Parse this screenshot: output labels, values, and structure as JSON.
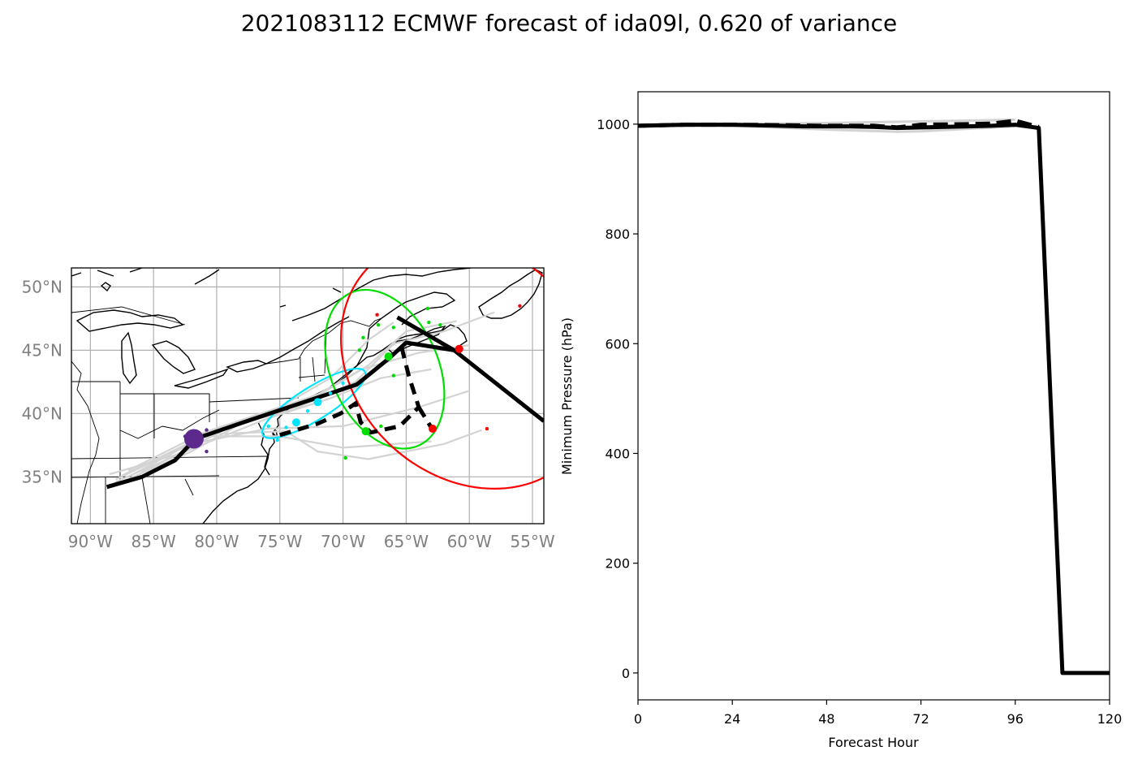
{
  "title": "2021083112 ECMWF forecast of ida09l, 0.620 of variance",
  "chart_data": [
    {
      "type": "map",
      "name": "track-map",
      "lon_range": [
        -91.5,
        -54.1
      ],
      "lat_range": [
        31.3,
        51.5
      ],
      "xticks": [
        -90,
        -85,
        -80,
        -75,
        -70,
        -65,
        -60,
        -55
      ],
      "xtick_labels": [
        "90°W",
        "85°W",
        "80°W",
        "75°W",
        "70°W",
        "65°W",
        "60°W",
        "55°W"
      ],
      "yticks": [
        35,
        40,
        45,
        50
      ],
      "ytick_labels": [
        "35°N",
        "40°N",
        "45°N",
        "50°N"
      ],
      "grid": true,
      "colors": {
        "mean_track": "#000000",
        "ensemble": "#d3d3d3",
        "grid": "#b0b0b0",
        "day1": "#5b2a8c",
        "day2": "#00e5ff",
        "day3": "#00dd00",
        "day4": "#ff0000"
      },
      "mean_track": [
        [
          -88.7,
          34.2
        ],
        [
          -85.9,
          35.0
        ],
        [
          -83.3,
          36.3
        ],
        [
          -81.7,
          38.0
        ],
        [
          -77.9,
          39.3
        ],
        [
          -73.4,
          40.8
        ],
        [
          -68.9,
          42.3
        ],
        [
          -66.3,
          44.4
        ],
        [
          -65.0,
          45.6
        ],
        [
          -61.2,
          45.0
        ],
        [
          -54.1,
          39.4
        ]
      ],
      "mean_track_branch": [
        [
          -65.7,
          47.6
        ],
        [
          -61.2,
          45.0
        ]
      ],
      "dashed_track": [
        [
          -75.0,
          38.3
        ],
        [
          -72.0,
          39.2
        ],
        [
          -70.2,
          40.0
        ],
        [
          -69.0,
          40.8
        ],
        [
          -68.6,
          39.3
        ],
        [
          -67.8,
          38.5
        ],
        [
          -65.5,
          39.0
        ],
        [
          -64.0,
          40.5
        ],
        [
          -64.8,
          43.0
        ],
        [
          -65.5,
          45.8
        ]
      ],
      "dashed_track_tail": [
        [
          -64.0,
          40.5
        ],
        [
          -62.9,
          38.7
        ]
      ],
      "ensemble_tracks": [
        [
          [
            -88.5,
            35.2
          ],
          [
            -83,
            36.8
          ],
          [
            -79,
            39.0
          ],
          [
            -74,
            40.3
          ],
          [
            -69,
            42.5
          ],
          [
            -66,
            45.5
          ],
          [
            -62,
            46.5
          ],
          [
            -58,
            48.0
          ]
        ],
        [
          [
            -88,
            34.6
          ],
          [
            -82,
            37.2
          ],
          [
            -76,
            39.6
          ],
          [
            -71,
            41.2
          ],
          [
            -67,
            42.8
          ],
          [
            -63,
            43.5
          ]
        ],
        [
          [
            -87,
            35.5
          ],
          [
            -81,
            38.5
          ],
          [
            -75,
            40.5
          ],
          [
            -71,
            42.8
          ],
          [
            -68,
            45.8
          ],
          [
            -66,
            47.2
          ]
        ],
        [
          [
            -88,
            34.8
          ],
          [
            -82,
            37.6
          ],
          [
            -76,
            38.8
          ],
          [
            -70,
            39.0
          ],
          [
            -64,
            40.5
          ],
          [
            -60,
            41.8
          ]
        ],
        [
          [
            -87,
            35.0
          ],
          [
            -81,
            38.2
          ],
          [
            -75,
            38.2
          ],
          [
            -70,
            37.3
          ],
          [
            -63,
            37.8
          ]
        ],
        [
          [
            -86,
            35.3
          ],
          [
            -80,
            38.4
          ],
          [
            -74.5,
            38.6
          ],
          [
            -72,
            37.0
          ],
          [
            -68,
            36.4
          ],
          [
            -62,
            37.6
          ],
          [
            -59,
            38.7
          ]
        ],
        [
          [
            -88,
            34.4
          ],
          [
            -82,
            37.0
          ],
          [
            -77,
            39.8
          ],
          [
            -72,
            41.5
          ],
          [
            -68,
            43.8
          ],
          [
            -65,
            46.5
          ],
          [
            -61,
            47.3
          ]
        ],
        [
          [
            -87.5,
            35.1
          ],
          [
            -81.5,
            38.0
          ],
          [
            -76,
            40.0
          ],
          [
            -71.5,
            41.7
          ],
          [
            -68.5,
            43.5
          ],
          [
            -64,
            44.8
          ],
          [
            -60,
            45.4
          ]
        ]
      ],
      "ellipses": [
        {
          "label": "day2",
          "color": "#00e5ff",
          "center": [
            -72.3,
            40.8
          ],
          "width_deg": 9.5,
          "height_deg": 2.6,
          "angle": 32
        },
        {
          "label": "day3",
          "color": "#00dd00",
          "center": [
            -66.7,
            43.5
          ],
          "width_deg": 8.5,
          "height_deg": 13.2,
          "angle": 24
        },
        {
          "label": "day4",
          "color": "#ff0000",
          "center": [
            -60.0,
            44.0
          ],
          "width_deg": 22,
          "height_deg": 18,
          "angle": -42
        }
      ],
      "points": [
        {
          "color": "#5b2a8c",
          "lonlat": [
            -81.8,
            38.0
          ],
          "size": "large"
        },
        {
          "color": "#5b2a8c",
          "lonlat": [
            -82.5,
            38.2
          ],
          "size": "small"
        },
        {
          "color": "#5b2a8c",
          "lonlat": [
            -80.8,
            38.7
          ],
          "size": "small"
        },
        {
          "color": "#5b2a8c",
          "lonlat": [
            -80.8,
            37.0
          ],
          "size": "small"
        },
        {
          "color": "#00e5ff",
          "lonlat": [
            -75.9,
            39.0
          ],
          "size": "small"
        },
        {
          "color": "#00e5ff",
          "lonlat": [
            -73.7,
            39.3
          ],
          "size": "medium"
        },
        {
          "color": "#00e5ff",
          "lonlat": [
            -72.0,
            40.9
          ],
          "size": "medium"
        },
        {
          "color": "#00e5ff",
          "lonlat": [
            -71.0,
            41.6
          ],
          "size": "small"
        },
        {
          "color": "#00e5ff",
          "lonlat": [
            -70.0,
            42.4
          ],
          "size": "small"
        },
        {
          "color": "#00e5ff",
          "lonlat": [
            -74.5,
            38.9
          ],
          "size": "small"
        },
        {
          "color": "#00e5ff",
          "lonlat": [
            -75.2,
            37.9
          ],
          "size": "small"
        },
        {
          "color": "#00e5ff",
          "lonlat": [
            -72.8,
            40.2
          ],
          "size": "small"
        },
        {
          "color": "#00dd00",
          "lonlat": [
            -66.4,
            44.5
          ],
          "size": "medium"
        },
        {
          "color": "#00dd00",
          "lonlat": [
            -68.2,
            38.6
          ],
          "size": "medium"
        },
        {
          "color": "#00dd00",
          "lonlat": [
            -66.0,
            46.8
          ],
          "size": "small"
        },
        {
          "color": "#00dd00",
          "lonlat": [
            -68.4,
            46.0
          ],
          "size": "small"
        },
        {
          "color": "#00dd00",
          "lonlat": [
            -67.2,
            47.0
          ],
          "size": "small"
        },
        {
          "color": "#00dd00",
          "lonlat": [
            -63.3,
            48.3
          ],
          "size": "small"
        },
        {
          "color": "#00dd00",
          "lonlat": [
            -63.2,
            47.2
          ],
          "size": "small"
        },
        {
          "color": "#00dd00",
          "lonlat": [
            -62.3,
            47.0
          ],
          "size": "small"
        },
        {
          "color": "#00dd00",
          "lonlat": [
            -66.0,
            43.0
          ],
          "size": "small"
        },
        {
          "color": "#00dd00",
          "lonlat": [
            -67.0,
            39.0
          ],
          "size": "small"
        },
        {
          "color": "#00dd00",
          "lonlat": [
            -69.8,
            36.5
          ],
          "size": "small"
        },
        {
          "color": "#00dd00",
          "lonlat": [
            -68.7,
            45.0
          ],
          "size": "small"
        },
        {
          "color": "#ff0000",
          "lonlat": [
            -60.8,
            45.1
          ],
          "size": "medium"
        },
        {
          "color": "#ff0000",
          "lonlat": [
            -62.9,
            38.8
          ],
          "size": "medium"
        },
        {
          "color": "#ff0000",
          "lonlat": [
            -67.3,
            47.8
          ],
          "size": "small"
        },
        {
          "color": "#ff0000",
          "lonlat": [
            -56.0,
            48.5
          ],
          "size": "small"
        },
        {
          "color": "#ff0000",
          "lonlat": [
            -58.6,
            38.8
          ],
          "size": "small"
        }
      ]
    },
    {
      "type": "line",
      "name": "pressure-chart",
      "title": "",
      "xlabel": "Forecast Hour",
      "ylabel": "Minimum Pressure (hPa)",
      "xlim": [
        0,
        120
      ],
      "ylim": [
        -49,
        1059
      ],
      "xticks": [
        0,
        24,
        48,
        72,
        96,
        120
      ],
      "yticks": [
        0,
        200,
        400,
        600,
        800,
        1000
      ],
      "grid": false,
      "series": [
        {
          "name": "mean",
          "style": "solid",
          "color": "#000000",
          "x": [
            0,
            6,
            12,
            18,
            24,
            30,
            36,
            42,
            48,
            54,
            60,
            66,
            72,
            78,
            84,
            90,
            96,
            102,
            108,
            114,
            120
          ],
          "y": [
            997,
            998,
            999,
            999,
            999,
            998,
            997,
            996,
            996,
            996,
            995,
            993,
            994,
            995,
            996,
            997,
            999,
            993,
            0,
            0,
            0
          ]
        },
        {
          "name": "deterministic",
          "style": "dashed",
          "color": "#000000",
          "x": [
            0,
            12,
            24,
            36,
            48,
            60,
            66,
            72,
            84,
            90,
            96,
            102
          ],
          "y": [
            997,
            999,
            999,
            998,
            997,
            997,
            994,
            999,
            1000,
            1001,
            1006,
            995
          ]
        },
        {
          "name": "ensemble-1",
          "style": "solid",
          "color": "#d3d3d3",
          "x": [
            0,
            24,
            48,
            66,
            72,
            96
          ],
          "y": [
            997,
            997,
            990,
            986,
            987,
            996
          ]
        },
        {
          "name": "ensemble-2",
          "style": "solid",
          "color": "#d3d3d3",
          "x": [
            0,
            24,
            48,
            72,
            96
          ],
          "y": [
            998,
            1000,
            1002,
            1005,
            1008
          ]
        },
        {
          "name": "ensemble-3",
          "style": "solid",
          "color": "#d3d3d3",
          "x": [
            0,
            24,
            48,
            72,
            96
          ],
          "y": [
            997,
            998,
            994,
            992,
            998
          ]
        }
      ]
    }
  ]
}
